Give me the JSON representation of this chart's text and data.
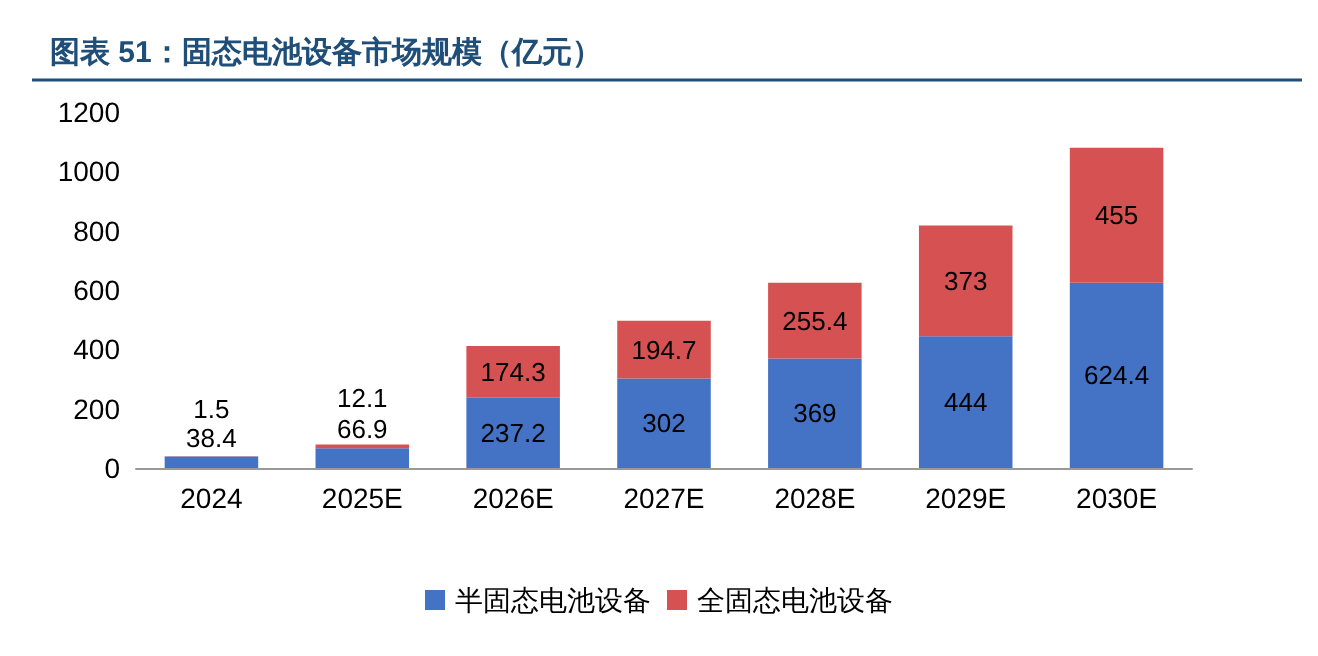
{
  "chart_data": {
    "type": "bar",
    "title": "图表 51：固态电池设备市场规模（亿元）",
    "categories": [
      "2024",
      "2025E",
      "2026E",
      "2027E",
      "2028E",
      "2029E",
      "2030E"
    ],
    "series": [
      {
        "name": "半固态电池设备",
        "color": "#4472c4",
        "values": [
          38.4,
          66.9,
          237.2,
          302,
          369,
          444,
          624.4
        ]
      },
      {
        "name": "全固态电池设备",
        "color": "#d65252",
        "values": [
          1.5,
          12.1,
          174.3,
          194.7,
          255.4,
          373,
          455
        ]
      }
    ],
    "stacked": true,
    "data_labels": true,
    "ylim": [
      0,
      1200
    ],
    "yticks": [
      0,
      200,
      400,
      600,
      800,
      1000,
      1200
    ],
    "grid": false,
    "legend": "bottom"
  }
}
